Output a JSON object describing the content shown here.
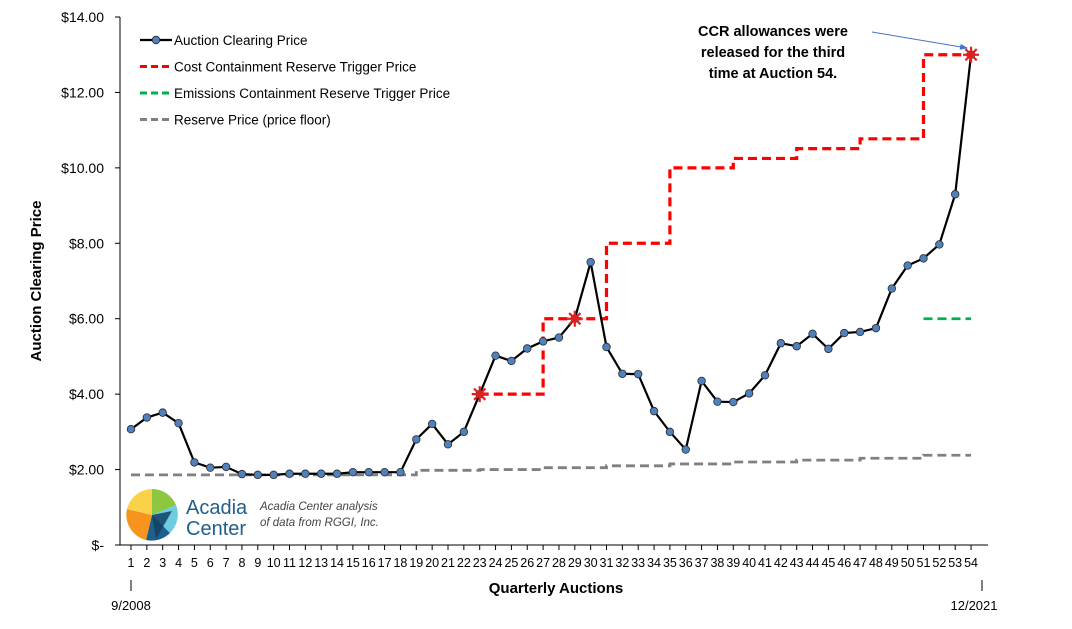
{
  "chart_data": {
    "type": "line",
    "ylabel": "Auction Clearing Price",
    "xlabel": "Quarterly Auctions",
    "ylim": [
      0,
      14
    ],
    "ytick_labels": [
      "$-",
      "$2.00",
      "$4.00",
      "$6.00",
      "$8.00",
      "$10.00",
      "$12.00",
      "$14.00"
    ],
    "x": [
      1,
      2,
      3,
      4,
      5,
      6,
      7,
      8,
      9,
      10,
      11,
      12,
      13,
      14,
      15,
      16,
      17,
      18,
      19,
      20,
      21,
      22,
      23,
      24,
      25,
      26,
      27,
      28,
      29,
      30,
      31,
      32,
      33,
      34,
      35,
      36,
      37,
      38,
      39,
      40,
      41,
      42,
      43,
      44,
      45,
      46,
      47,
      48,
      49,
      50,
      51,
      52,
      53,
      54
    ],
    "start_date": "9/2008",
    "end_date": "12/2021",
    "legend_position": "top-left",
    "grid": false,
    "series": [
      {
        "name": "Auction Clearing Price",
        "color": "#000000",
        "marker_color": "#4f81bd",
        "style": "solid-markers",
        "values": [
          3.07,
          3.38,
          3.51,
          3.23,
          2.19,
          2.05,
          2.07,
          1.88,
          1.86,
          1.86,
          1.89,
          1.89,
          1.89,
          1.89,
          1.93,
          1.93,
          1.93,
          1.93,
          2.8,
          3.21,
          2.67,
          3.0,
          4.0,
          5.02,
          4.88,
          5.21,
          5.4,
          5.5,
          6.0,
          7.5,
          5.25,
          4.54,
          4.53,
          3.55,
          3.0,
          2.53,
          4.35,
          3.8,
          3.79,
          4.02,
          4.5,
          5.35,
          5.27,
          5.6,
          5.2,
          5.62,
          5.65,
          5.75,
          6.8,
          7.41,
          7.6,
          7.97,
          9.3,
          13.0
        ]
      },
      {
        "name": "Cost Containment Reserve Trigger Price",
        "color": "#ff0000",
        "style": "dashed-step",
        "values": [
          null,
          null,
          null,
          null,
          null,
          null,
          null,
          null,
          null,
          null,
          null,
          null,
          null,
          null,
          null,
          null,
          null,
          null,
          null,
          null,
          null,
          null,
          4.0,
          4.0,
          4.0,
          4.0,
          6.0,
          6.0,
          6.0,
          6.0,
          8.0,
          8.0,
          8.0,
          8.0,
          10.0,
          10.0,
          10.0,
          10.0,
          10.25,
          10.25,
          10.25,
          10.25,
          10.51,
          10.51,
          10.51,
          10.51,
          10.77,
          10.77,
          10.77,
          10.77,
          13.0,
          13.0,
          13.0,
          13.0
        ]
      },
      {
        "name": "Emissions Containment Reserve Trigger Price",
        "color": "#00b050",
        "style": "dashed",
        "values": [
          null,
          null,
          null,
          null,
          null,
          null,
          null,
          null,
          null,
          null,
          null,
          null,
          null,
          null,
          null,
          null,
          null,
          null,
          null,
          null,
          null,
          null,
          null,
          null,
          null,
          null,
          null,
          null,
          null,
          null,
          null,
          null,
          null,
          null,
          null,
          null,
          null,
          null,
          null,
          null,
          null,
          null,
          null,
          null,
          null,
          null,
          null,
          null,
          null,
          null,
          6.0,
          6.0,
          6.0,
          6.0
        ]
      },
      {
        "name": "Reserve Price (price floor)",
        "color": "#808080",
        "style": "dashed-step",
        "values": [
          1.86,
          1.86,
          1.86,
          1.86,
          1.86,
          1.86,
          1.86,
          1.86,
          1.86,
          1.86,
          1.86,
          1.86,
          1.86,
          1.86,
          1.86,
          1.86,
          1.86,
          1.86,
          1.98,
          1.98,
          1.98,
          1.98,
          2.0,
          2.0,
          2.0,
          2.0,
          2.05,
          2.05,
          2.05,
          2.05,
          2.1,
          2.1,
          2.1,
          2.1,
          2.15,
          2.15,
          2.15,
          2.15,
          2.2,
          2.2,
          2.2,
          2.2,
          2.25,
          2.25,
          2.25,
          2.25,
          2.3,
          2.3,
          2.3,
          2.3,
          2.38,
          2.38,
          2.38,
          2.38
        ]
      }
    ],
    "ccr_release_markers": [
      23,
      29,
      54
    ],
    "marker_color": "#e02020",
    "annotation": {
      "lines": [
        "CCR allowances were",
        "released for the third",
        "time at Auction 54."
      ],
      "arrow_color": "#4472c4"
    }
  },
  "brand": {
    "name_line1": "Acadia",
    "name_line2": "Center",
    "note_line1": "Acadia Center analysis",
    "note_line2": "of data from RGGI, Inc.",
    "logo_icon": "acadia-pinwheel-logo"
  }
}
